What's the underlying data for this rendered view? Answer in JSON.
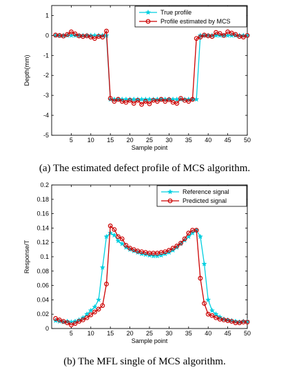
{
  "chart_data": [
    {
      "type": "line",
      "caption": "(a) The estimated defect profile of MCS algorithm.",
      "xlabel": "Sample point",
      "ylabel": "Depth(mm)",
      "xlim": [
        0,
        50
      ],
      "ylim": [
        -5,
        1.5
      ],
      "xticks": [
        5,
        10,
        15,
        20,
        25,
        30,
        35,
        40,
        45,
        50
      ],
      "yticks": [
        -5,
        -4,
        -3,
        -2,
        -1,
        0,
        1
      ],
      "grid": false,
      "legend_position": "top-right",
      "x": [
        1,
        2,
        3,
        4,
        5,
        6,
        7,
        8,
        9,
        10,
        11,
        12,
        13,
        14,
        15,
        16,
        17,
        18,
        19,
        20,
        21,
        22,
        23,
        24,
        25,
        26,
        27,
        28,
        29,
        30,
        31,
        32,
        33,
        34,
        35,
        36,
        37,
        38,
        39,
        40,
        41,
        42,
        43,
        44,
        45,
        46,
        47,
        48,
        49,
        50
      ],
      "series": [
        {
          "name": "True profile",
          "color": "#00cfe0",
          "marker": "star",
          "values": [
            0,
            0,
            0,
            0,
            0,
            0,
            0,
            0,
            0,
            0,
            0,
            0,
            0,
            0,
            -3.2,
            -3.2,
            -3.2,
            -3.2,
            -3.2,
            -3.2,
            -3.2,
            -3.2,
            -3.2,
            -3.2,
            -3.2,
            -3.2,
            -3.2,
            -3.2,
            -3.2,
            -3.2,
            -3.2,
            -3.2,
            -3.2,
            -3.2,
            -3.2,
            -3.2,
            -3.2,
            0,
            0,
            0,
            0,
            0,
            0,
            0,
            0,
            0,
            0,
            0,
            0,
            0
          ]
        },
        {
          "name": "Profile estimated by MCS",
          "color": "#cc0000",
          "marker": "circle",
          "values": [
            0.02,
            0.0,
            -0.03,
            0.05,
            0.18,
            0.08,
            -0.02,
            -0.05,
            -0.02,
            -0.08,
            -0.15,
            -0.05,
            -0.08,
            0.22,
            -3.15,
            -3.3,
            -3.2,
            -3.3,
            -3.35,
            -3.25,
            -3.4,
            -3.25,
            -3.45,
            -3.3,
            -3.42,
            -3.25,
            -3.3,
            -3.2,
            -3.3,
            -3.22,
            -3.35,
            -3.4,
            -3.15,
            -3.25,
            -3.3,
            -3.2,
            -0.15,
            -0.08,
            0.02,
            -0.02,
            -0.05,
            0.15,
            0.1,
            0.0,
            0.18,
            0.12,
            0.05,
            -0.05,
            -0.08,
            0.0
          ]
        }
      ]
    },
    {
      "type": "line",
      "caption": "(b) The MFL single of MCS algorithm.",
      "xlabel": "Sample point",
      "ylabel": "Response/T",
      "xlim": [
        0,
        50
      ],
      "ylim": [
        0,
        0.2
      ],
      "xticks": [
        5,
        10,
        15,
        20,
        25,
        30,
        35,
        40,
        45,
        50
      ],
      "yticks": [
        0,
        0.02,
        0.04,
        0.06,
        0.08,
        0.1,
        0.12,
        0.14,
        0.16,
        0.18,
        0.2
      ],
      "grid": false,
      "legend_position": "top-right",
      "x": [
        1,
        2,
        3,
        4,
        5,
        6,
        7,
        8,
        9,
        10,
        11,
        12,
        13,
        14,
        15,
        16,
        17,
        18,
        19,
        20,
        21,
        22,
        23,
        24,
        25,
        26,
        27,
        28,
        29,
        30,
        31,
        32,
        33,
        34,
        35,
        36,
        37,
        38,
        39,
        40,
        41,
        42,
        43,
        44,
        45,
        46,
        47,
        48,
        49,
        50
      ],
      "series": [
        {
          "name": "Reference signal",
          "color": "#00cfe0",
          "marker": "star",
          "values": [
            0.011,
            0.01,
            0.009,
            0.01,
            0.009,
            0.01,
            0.012,
            0.015,
            0.02,
            0.025,
            0.03,
            0.04,
            0.085,
            0.128,
            0.133,
            0.13,
            0.122,
            0.118,
            0.113,
            0.11,
            0.108,
            0.106,
            0.104,
            0.103,
            0.102,
            0.101,
            0.101,
            0.102,
            0.104,
            0.106,
            0.109,
            0.113,
            0.118,
            0.123,
            0.128,
            0.133,
            0.137,
            0.128,
            0.09,
            0.04,
            0.025,
            0.02,
            0.016,
            0.013,
            0.012,
            0.011,
            0.01,
            0.009,
            0.01,
            0.01
          ]
        },
        {
          "name": "Predicted signal",
          "color": "#cc0000",
          "marker": "circle",
          "values": [
            0.014,
            0.012,
            0.01,
            0.008,
            0.005,
            0.007,
            0.01,
            0.012,
            0.015,
            0.019,
            0.023,
            0.027,
            0.032,
            0.062,
            0.143,
            0.138,
            0.128,
            0.125,
            0.116,
            0.112,
            0.11,
            0.108,
            0.107,
            0.106,
            0.105,
            0.105,
            0.105,
            0.106,
            0.107,
            0.109,
            0.112,
            0.115,
            0.119,
            0.125,
            0.133,
            0.137,
            0.137,
            0.07,
            0.035,
            0.02,
            0.018,
            0.015,
            0.013,
            0.012,
            0.011,
            0.01,
            0.008,
            0.008,
            0.009,
            0.009
          ]
        }
      ]
    }
  ]
}
